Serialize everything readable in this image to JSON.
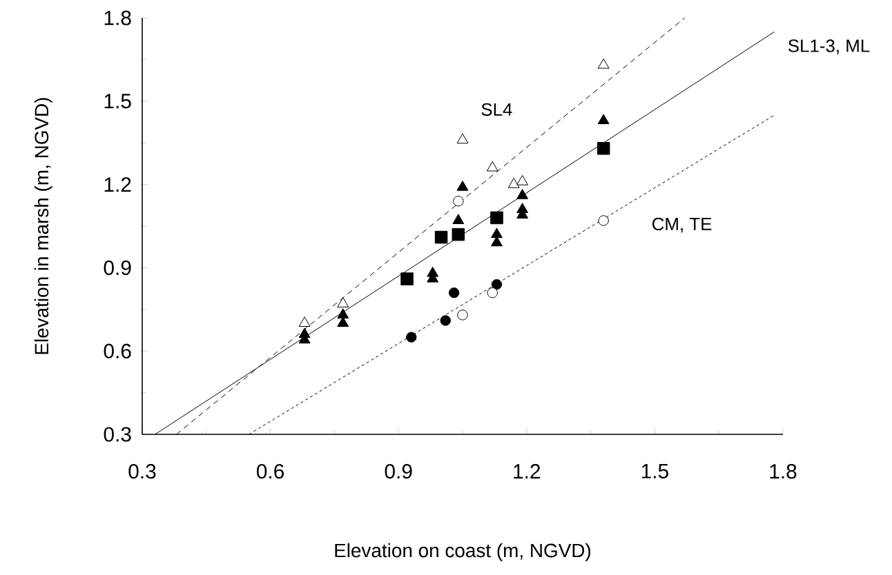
{
  "chart_data": {
    "type": "scatter",
    "xlabel": "Elevation on coast (m, NGVD)",
    "ylabel": "Elevation in marsh (m, NGVD)",
    "xlim": [
      0.3,
      1.8
    ],
    "ylim": [
      0.3,
      1.8
    ],
    "xticks": [
      {
        "value": 0.3,
        "label": "0.3"
      },
      {
        "value": 0.6,
        "label": "0.6"
      },
      {
        "value": 0.9,
        "label": "0.9"
      },
      {
        "value": 1.2,
        "label": "1.2"
      },
      {
        "value": 1.5,
        "label": "1.5"
      },
      {
        "value": 1.8,
        "label": "1.8"
      }
    ],
    "yticks": [
      {
        "value": 0.3,
        "label": "0.3"
      },
      {
        "value": 0.6,
        "label": "0.6"
      },
      {
        "value": 0.9,
        "label": "0.9"
      },
      {
        "value": 1.2,
        "label": "1.2"
      },
      {
        "value": 1.5,
        "label": "1.5"
      },
      {
        "value": 1.8,
        "label": "1.8"
      }
    ],
    "grid": false,
    "legend": false,
    "series": [
      {
        "type": "line",
        "name": "SL4",
        "color": "#000000",
        "line_style": "dashed",
        "marker": "none",
        "x": [
          0.38,
          1.57
        ],
        "values": [
          0.3,
          1.8
        ]
      },
      {
        "type": "line",
        "name": "SL1-3, ML",
        "color": "#000000",
        "line_style": "solid",
        "marker": "none",
        "x": [
          0.33,
          1.78
        ],
        "values": [
          0.3,
          1.75
        ]
      },
      {
        "type": "line",
        "name": "CM, TE",
        "color": "#000000",
        "line_style": "dotted",
        "marker": "none",
        "x": [
          0.55,
          1.78
        ],
        "values": [
          0.3,
          1.45
        ]
      },
      {
        "color": "#ffffff",
        "marker": "triangle",
        "x": [
          0.68,
          0.77,
          1.05,
          1.12,
          1.17,
          1.19,
          1.38
        ],
        "values": [
          0.7,
          0.77,
          1.36,
          1.26,
          1.2,
          1.21,
          1.63
        ]
      },
      {
        "color": "#000000",
        "marker": "triangle",
        "x": [
          0.68,
          0.68,
          0.77,
          0.77,
          0.98,
          0.98,
          1.04,
          1.05,
          1.13,
          1.13,
          1.19,
          1.19,
          1.19,
          1.38
        ],
        "values": [
          0.66,
          0.64,
          0.73,
          0.7,
          0.88,
          0.86,
          1.07,
          1.19,
          1.02,
          0.99,
          1.16,
          1.11,
          1.09,
          1.43
        ]
      },
      {
        "color": "#000000",
        "marker": "square",
        "x": [
          0.92,
          1.0,
          1.04,
          1.13,
          1.38
        ],
        "values": [
          0.86,
          1.01,
          1.02,
          1.08,
          1.33
        ]
      },
      {
        "color": "#000000",
        "marker": "circle",
        "x": [
          0.93,
          1.01,
          1.03,
          1.13
        ],
        "values": [
          0.65,
          0.71,
          0.81,
          0.84
        ]
      },
      {
        "color": "#ffffff",
        "marker": "circle",
        "x": [
          1.04,
          1.05,
          1.12,
          1.38
        ],
        "values": [
          1.14,
          0.73,
          0.81,
          1.07
        ]
      }
    ]
  }
}
